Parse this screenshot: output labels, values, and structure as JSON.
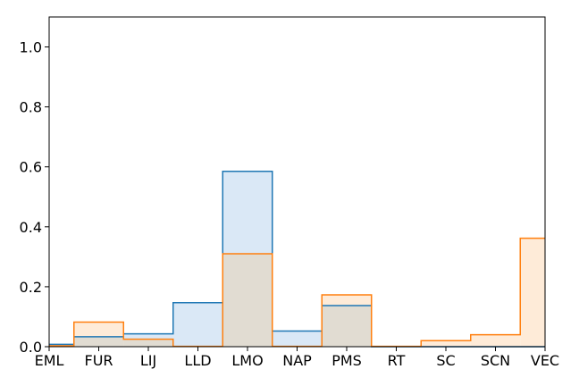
{
  "chart_data": {
    "type": "area",
    "categories": [
      "EML",
      "FUR",
      "LIJ",
      "LLD",
      "LMO",
      "NAP",
      "PMS",
      "RT",
      "SC",
      "SCN",
      "VEC"
    ],
    "ylim": [
      0,
      1.1
    ],
    "yticks": [
      0.0,
      0.2,
      0.4,
      0.6,
      0.8,
      1.0
    ],
    "ytick_labels": [
      "0.0",
      "0.2",
      "0.4",
      "0.6",
      "0.8",
      "1.0"
    ],
    "title": "",
    "xlabel": "",
    "ylabel": "",
    "grid": false,
    "step": "mid",
    "series": [
      {
        "color": "#1f77b4",
        "fill": "#dae8f6",
        "values": [
          0.008,
          0.033,
          0.043,
          0.147,
          0.585,
          0.052,
          0.137,
          0.0,
          0.0,
          0.0,
          0.0
        ]
      },
      {
        "color": "#ff7f0e",
        "fill": "#feebd8",
        "values": [
          0.003,
          0.082,
          0.025,
          0.001,
          0.31,
          0.001,
          0.173,
          0.001,
          0.02,
          0.04,
          0.362
        ]
      }
    ],
    "overlap_fill": "#e1dcd2"
  }
}
